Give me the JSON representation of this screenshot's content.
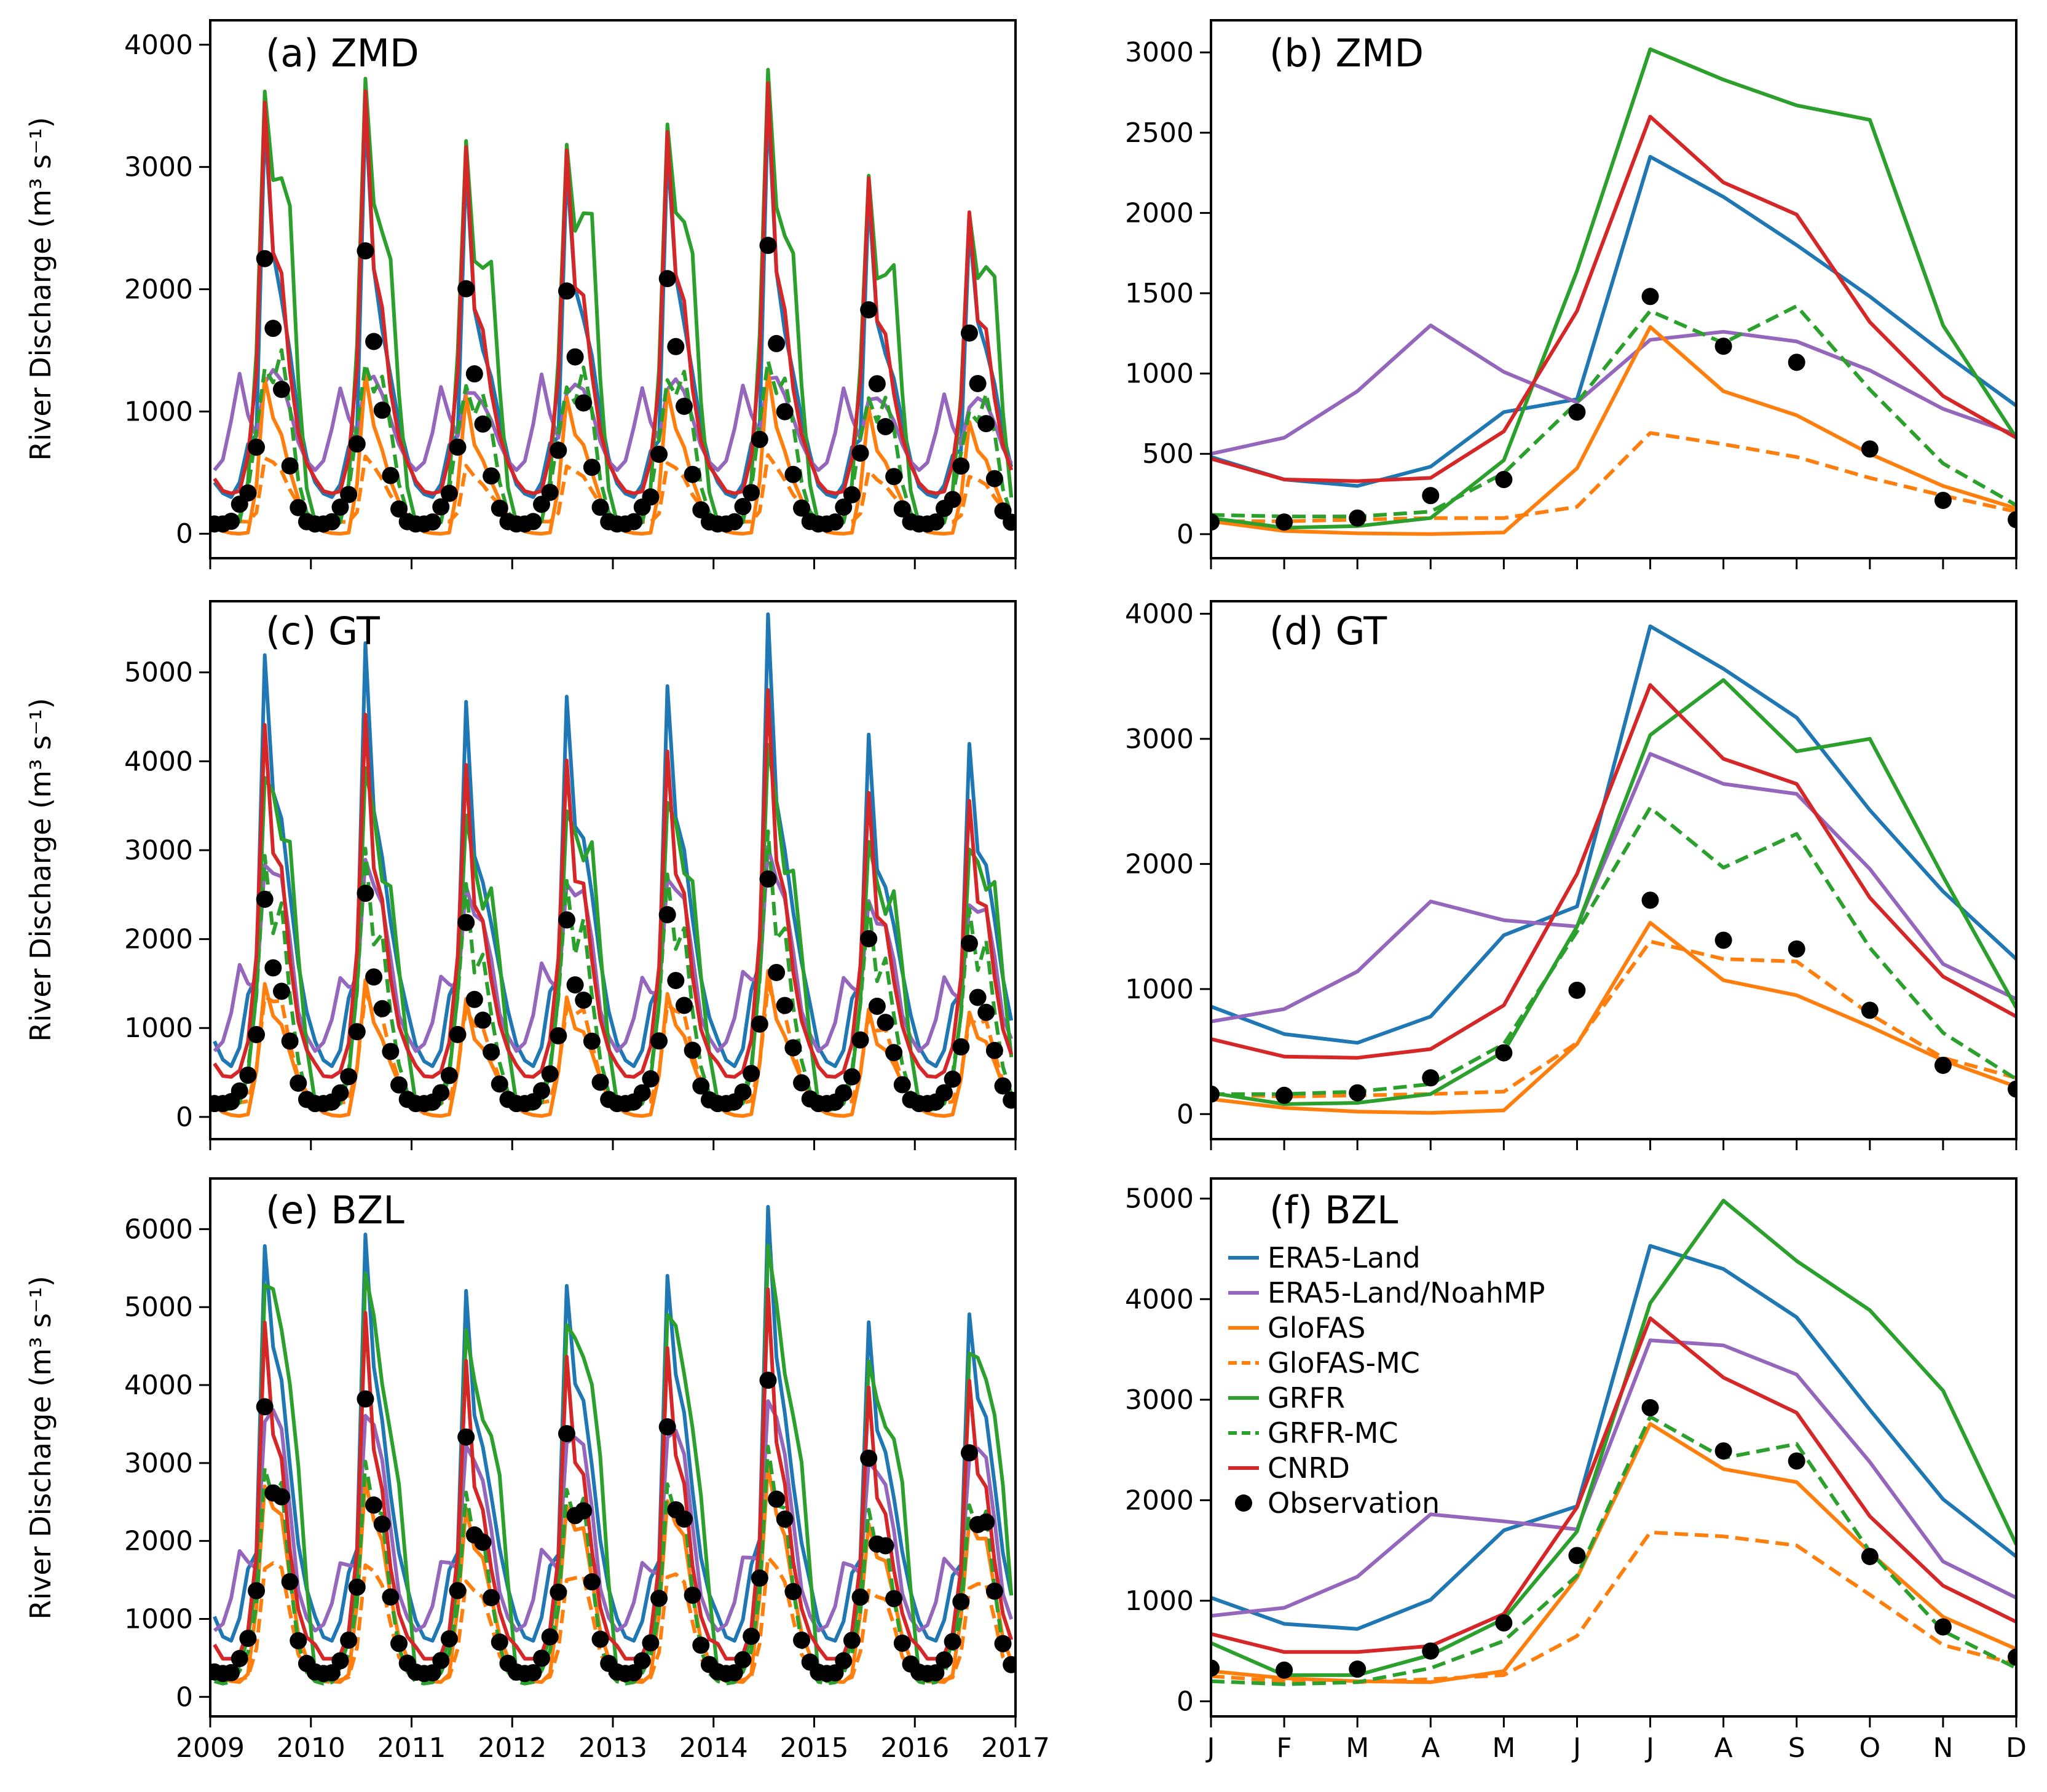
{
  "colors": {
    "ERA5-Land": "#1f77b4",
    "ERA5-Land/NoahMP": "#9467bd",
    "GloFAS": "#ff7f0e",
    "GloFAS-MC": "#ff7f0e",
    "GRFR": "#2ca02c",
    "GRFR-MC": "#2ca02c",
    "CNRD": "#d62728",
    "Observation": "#000000"
  },
  "y_axis_label": "River Discharge (m³ s⁻¹)",
  "legend": [
    {
      "name": "ERA5-Land",
      "style": "solid"
    },
    {
      "name": "ERA5-Land/NoahMP",
      "style": "solid"
    },
    {
      "name": "GloFAS",
      "style": "solid"
    },
    {
      "name": "GloFAS-MC",
      "style": "dashed"
    },
    {
      "name": "GRFR",
      "style": "solid"
    },
    {
      "name": "GRFR-MC",
      "style": "dashed"
    },
    {
      "name": "CNRD",
      "style": "solid"
    },
    {
      "name": "Observation",
      "style": "marker"
    }
  ],
  "chart_data": [
    {
      "panel": "a",
      "title": "(a) ZMD",
      "type": "line",
      "xlim": [
        2009,
        2017
      ],
      "x_ticks": [
        2009,
        2010,
        2011,
        2012,
        2013,
        2014,
        2015,
        2016,
        2017
      ],
      "x_ticks_labeled": false,
      "ylim": [
        -200,
        4200
      ],
      "y_ticks": [
        0,
        1000,
        2000,
        3000,
        4000
      ],
      "annual_patterns": {
        "ERA5-Land": [
          420,
          330,
          300,
          420,
          760,
          850,
          3450,
          2200,
          1800,
          1450,
          1000,
          650
        ],
        "ERA5-Land/NoahMP": [
          520,
          600,
          900,
          1300,
          1000,
          820,
          1250,
          1300,
          1200,
          1000,
          760,
          600
        ],
        "GloFAS": [
          80,
          20,
          5,
          0,
          10,
          420,
          1300,
          900,
          750,
          500,
          300,
          150
        ],
        "GloFAS-MC": [
          80,
          80,
          90,
          100,
          100,
          180,
          630,
          560,
          480,
          350,
          250,
          150
        ],
        "GRFR": [
          100,
          50,
          50,
          100,
          450,
          1600,
          3700,
          2750,
          2700,
          2600,
          1300,
          400
        ],
        "GRFR-MC": [
          100,
          100,
          120,
          140,
          380,
          900,
          1380,
          1180,
          1400,
          1000,
          450,
          180
        ],
        "CNRD": [
          450,
          350,
          330,
          350,
          650,
          1400,
          3600,
          2200,
          2000,
          1300,
          850,
          600
        ],
        "Observation": [
          80,
          80,
          100,
          240,
          350,
          760,
          2300,
          1600,
          1100,
          540,
          220,
          100
        ]
      },
      "year_peak_scale": [
        1.0,
        0.85,
        0.7,
        0.85,
        0.75,
        0.9,
        0.6,
        0.45
      ]
    },
    {
      "panel": "b",
      "title": "(b) ZMD",
      "type": "line",
      "categories": [
        "J",
        "F",
        "M",
        "A",
        "M",
        "J",
        "J",
        "A",
        "S",
        "O",
        "N",
        "D"
      ],
      "ylim": [
        -150,
        3200
      ],
      "y_ticks": [
        0,
        500,
        1000,
        1500,
        2000,
        2500,
        3000
      ],
      "series": [
        {
          "name": "ERA5-Land",
          "style": "solid",
          "values": [
            480,
            340,
            300,
            420,
            760,
            840,
            2350,
            2100,
            1800,
            1480,
            1130,
            800
          ]
        },
        {
          "name": "ERA5-Land/NoahMP",
          "style": "solid",
          "values": [
            500,
            600,
            890,
            1300,
            1010,
            820,
            1210,
            1260,
            1200,
            1020,
            780,
            620
          ]
        },
        {
          "name": "GloFAS",
          "style": "solid",
          "values": [
            80,
            20,
            5,
            0,
            10,
            410,
            1290,
            890,
            740,
            500,
            300,
            160
          ]
        },
        {
          "name": "GloFAS-MC",
          "style": "dashed",
          "values": [
            80,
            80,
            90,
            100,
            100,
            170,
            630,
            560,
            480,
            350,
            240,
            140
          ]
        },
        {
          "name": "GRFR",
          "style": "solid",
          "values": [
            100,
            40,
            50,
            100,
            460,
            1640,
            3020,
            2830,
            2670,
            2580,
            1300,
            600
          ]
        },
        {
          "name": "GRFR-MC",
          "style": "dashed",
          "values": [
            120,
            110,
            110,
            140,
            380,
            820,
            1390,
            1190,
            1420,
            900,
            440,
            180
          ]
        },
        {
          "name": "CNRD",
          "style": "solid",
          "values": [
            470,
            340,
            330,
            350,
            640,
            1390,
            2600,
            2190,
            1990,
            1320,
            860,
            600
          ]
        },
        {
          "name": "Observation",
          "style": "marker",
          "values": [
            75,
            75,
            100,
            240,
            340,
            760,
            1480,
            1170,
            1070,
            530,
            210,
            90
          ]
        }
      ]
    },
    {
      "panel": "c",
      "title": "(c) GT",
      "type": "line",
      "xlim": [
        2009,
        2017
      ],
      "x_ticks": [
        2009,
        2010,
        2011,
        2012,
        2013,
        2014,
        2015,
        2016,
        2017
      ],
      "x_ticks_labeled": false,
      "ylim": [
        -250,
        5800
      ],
      "y_ticks": [
        0,
        1000,
        2000,
        3000,
        4000,
        5000
      ],
      "annual_patterns": {
        "ERA5-Land": [
          850,
          640,
          570,
          780,
          1430,
          1660,
          5300,
          3500,
          3150,
          2450,
          1770,
          1240
        ],
        "ERA5-Land/NoahMP": [
          740,
          840,
          1140,
          1700,
          1550,
          1500,
          2880,
          2640,
          2560,
          1960,
          1200,
          920
        ],
        "GloFAS": [
          120,
          50,
          20,
          10,
          30,
          560,
          1530,
          1080,
          960,
          700,
          430,
          220
        ],
        "GloFAS-MC": [
          160,
          140,
          150,
          160,
          180,
          570,
          1380,
          1240,
          1220,
          800,
          450,
          290
        ],
        "GRFR": [
          170,
          80,
          90,
          160,
          500,
          1500,
          3900,
          3470,
          2900,
          3000,
          1900,
          850
        ],
        "GRFR-MC": [
          160,
          160,
          180,
          240,
          560,
          1460,
          3000,
          1970,
          2240,
          1330,
          650,
          280
        ],
        "CNRD": [
          600,
          460,
          450,
          520,
          870,
          1920,
          4500,
          2840,
          2640,
          1730,
          1100,
          780
        ],
        "Observation": [
          150,
          150,
          170,
          290,
          490,
          990,
          2500,
          1600,
          1320,
          830,
          390,
          200
        ]
      },
      "year_peak_scale": [
        1.0,
        0.85,
        0.7,
        0.9,
        0.75,
        1.0,
        0.6,
        0.6
      ]
    },
    {
      "panel": "d",
      "title": "(d) GT",
      "type": "line",
      "categories": [
        "J",
        "F",
        "M",
        "A",
        "M",
        "J",
        "J",
        "A",
        "S",
        "O",
        "N",
        "D"
      ],
      "ylim": [
        -200,
        4100
      ],
      "y_ticks": [
        0,
        1000,
        2000,
        3000,
        4000
      ],
      "series": [
        {
          "name": "ERA5-Land",
          "style": "solid",
          "values": [
            860,
            640,
            570,
            780,
            1430,
            1660,
            3900,
            3560,
            3170,
            2430,
            1780,
            1240
          ]
        },
        {
          "name": "ERA5-Land/NoahMP",
          "style": "solid",
          "values": [
            740,
            840,
            1140,
            1700,
            1550,
            1500,
            2880,
            2640,
            2560,
            1960,
            1200,
            920
          ]
        },
        {
          "name": "GloFAS",
          "style": "solid",
          "values": [
            120,
            50,
            20,
            10,
            30,
            560,
            1530,
            1070,
            950,
            700,
            430,
            220
          ]
        },
        {
          "name": "GloFAS-MC",
          "style": "dashed",
          "values": [
            160,
            140,
            150,
            160,
            180,
            570,
            1380,
            1240,
            1220,
            800,
            450,
            290
          ]
        },
        {
          "name": "GRFR",
          "style": "solid",
          "values": [
            170,
            80,
            90,
            160,
            500,
            1500,
            3030,
            3470,
            2900,
            3000,
            1900,
            850
          ]
        },
        {
          "name": "GRFR-MC",
          "style": "dashed",
          "values": [
            160,
            160,
            180,
            240,
            560,
            1460,
            2450,
            1970,
            2240,
            1330,
            650,
            280
          ]
        },
        {
          "name": "CNRD",
          "style": "solid",
          "values": [
            600,
            460,
            450,
            520,
            870,
            1920,
            3430,
            2840,
            2640,
            1730,
            1100,
            780
          ]
        },
        {
          "name": "Observation",
          "style": "marker",
          "values": [
            160,
            150,
            170,
            290,
            490,
            990,
            1710,
            1390,
            1320,
            830,
            390,
            200
          ]
        }
      ]
    },
    {
      "panel": "e",
      "title": "(e) BZL",
      "type": "line",
      "xlim": [
        2009,
        2017
      ],
      "x_ticks": [
        2009,
        2010,
        2011,
        2012,
        2013,
        2014,
        2015,
        2016,
        2017
      ],
      "x_tick_labels": [
        "2009",
        "2010",
        "2011",
        "2012",
        "2013",
        "2014",
        "2015",
        "2016",
        "2017"
      ],
      "ylim": [
        -250,
        6650
      ],
      "y_ticks": [
        0,
        1000,
        2000,
        3000,
        4000,
        5000,
        6000
      ],
      "annual_patterns": {
        "ERA5-Land": [
          1030,
          770,
          720,
          1010,
          1700,
          1940,
          5900,
          4300,
          3820,
          2900,
          2010,
          1440
        ],
        "ERA5-Land/NoahMP": [
          850,
          930,
          1240,
          1860,
          1790,
          1710,
          3590,
          3540,
          3250,
          2380,
          1390,
          1030
        ],
        "GloFAS": [
          300,
          230,
          200,
          190,
          300,
          1230,
          2760,
          2310,
          2180,
          1480,
          840,
          520
        ],
        "GloFAS-MC": [
          250,
          200,
          190,
          220,
          260,
          650,
          1680,
          1640,
          1550,
          1060,
          560,
          370
        ],
        "GRFR": [
          300,
          200,
          230,
          400,
          800,
          1600,
          5400,
          4980,
          4380,
          3890,
          3090,
          1560
        ],
        "GRFR-MC": [
          200,
          170,
          190,
          330,
          600,
          1250,
          3000,
          2420,
          2560,
          1490,
          700,
          330
        ],
        "CNRD": [
          670,
          490,
          490,
          550,
          870,
          1930,
          4900,
          3220,
          2870,
          1840,
          1150,
          790
        ],
        "Observation": [
          320,
          300,
          310,
          490,
          780,
          1450,
          3800,
          2500,
          2400,
          1440,
          740,
          440
        ]
      },
      "year_peak_scale": [
        1.0,
        0.85,
        0.7,
        0.9,
        0.75,
        1.0,
        0.6,
        0.7
      ]
    },
    {
      "panel": "f",
      "title": "(f) BZL",
      "type": "line",
      "categories": [
        "J",
        "F",
        "M",
        "A",
        "M",
        "J",
        "J",
        "A",
        "S",
        "O",
        "N",
        "D"
      ],
      "ylim": [
        -150,
        5200
      ],
      "y_ticks": [
        0,
        1000,
        2000,
        3000,
        4000,
        5000
      ],
      "legend_position": "upper-left",
      "series": [
        {
          "name": "ERA5-Land",
          "style": "solid",
          "values": [
            1030,
            770,
            720,
            1010,
            1700,
            1940,
            4530,
            4300,
            3820,
            2900,
            2010,
            1440
          ]
        },
        {
          "name": "ERA5-Land/NoahMP",
          "style": "solid",
          "values": [
            850,
            930,
            1240,
            1860,
            1790,
            1710,
            3590,
            3540,
            3250,
            2380,
            1390,
            1030
          ]
        },
        {
          "name": "GloFAS",
          "style": "solid",
          "values": [
            300,
            230,
            200,
            190,
            300,
            1230,
            2760,
            2310,
            2180,
            1480,
            840,
            520
          ]
        },
        {
          "name": "GloFAS-MC",
          "style": "dashed",
          "values": [
            250,
            200,
            190,
            220,
            260,
            650,
            1680,
            1640,
            1550,
            1060,
            560,
            370
          ]
        },
        {
          "name": "GRFR",
          "style": "solid",
          "values": [
            580,
            260,
            260,
            460,
            820,
            1690,
            3960,
            4980,
            4380,
            3890,
            3090,
            1560
          ]
        },
        {
          "name": "GRFR-MC",
          "style": "dashed",
          "values": [
            200,
            170,
            190,
            330,
            600,
            1250,
            2830,
            2420,
            2560,
            1490,
            700,
            330
          ]
        },
        {
          "name": "CNRD",
          "style": "solid",
          "values": [
            670,
            490,
            490,
            550,
            870,
            1930,
            3810,
            3220,
            2870,
            1840,
            1150,
            790
          ]
        },
        {
          "name": "Observation",
          "style": "marker",
          "values": [
            330,
            310,
            320,
            500,
            780,
            1450,
            2920,
            2490,
            2390,
            1440,
            740,
            440
          ]
        }
      ]
    }
  ]
}
